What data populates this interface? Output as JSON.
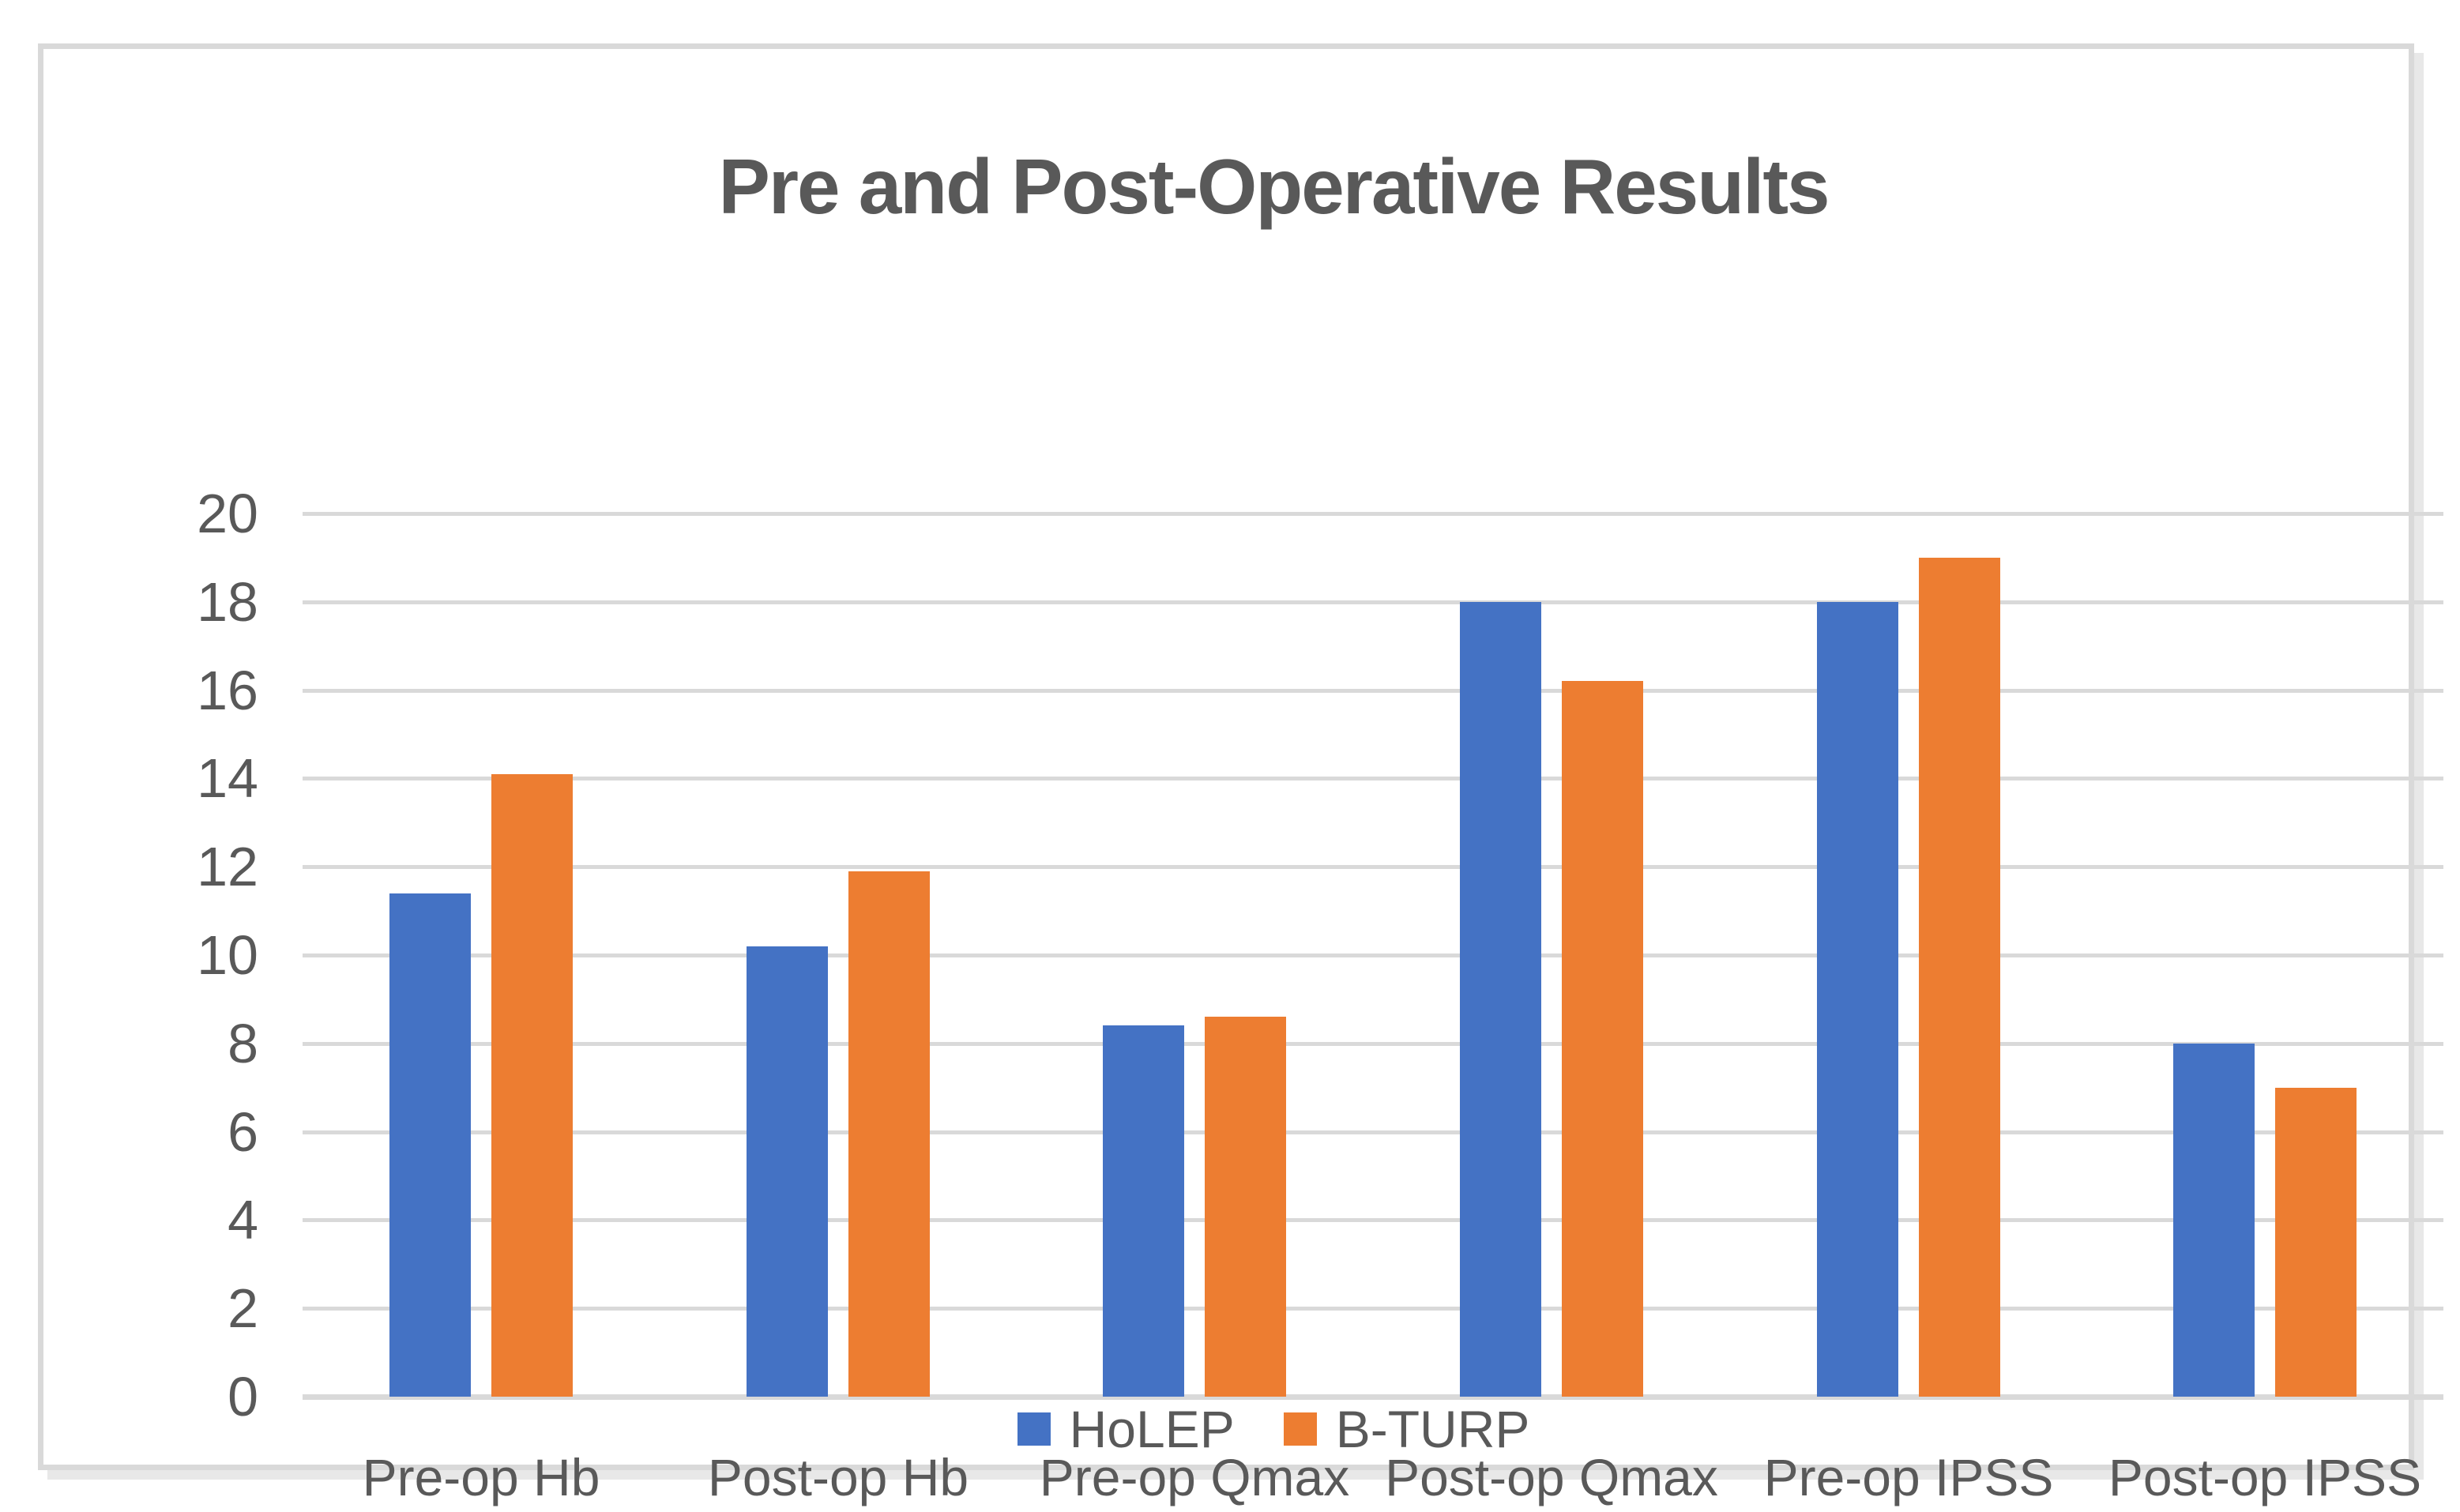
{
  "title": "Pre and Post-Operative Results",
  "legend": {
    "position": "bottom-center",
    "items": [
      {
        "label": "HoLEP",
        "swatch_color": "#4472C4"
      },
      {
        "label": "B-TURP",
        "swatch_color": "#ED7D31"
      }
    ]
  },
  "colors": {
    "series_holep": "#4472C4",
    "series_bturp": "#ED7D31",
    "text": "#595959",
    "gridline": "#D9D9D9",
    "frame_border": "#D9D9D9",
    "background": "#FFFFFF"
  },
  "chart_data": {
    "type": "bar",
    "title": "Pre and Post-Operative Results",
    "categories": [
      "Pre-op Hb",
      "Post-op Hb",
      "Pre-op Qmax",
      "Post-op Qmax",
      "Pre-op IPSS",
      "Post-op IPSS"
    ],
    "series": [
      {
        "name": "HoLEP",
        "color": "#4472C4",
        "values": [
          11.4,
          10.2,
          8.4,
          18,
          18,
          8
        ]
      },
      {
        "name": "B-TURP",
        "color": "#ED7D31",
        "values": [
          14.1,
          11.9,
          8.6,
          16.2,
          19,
          7
        ]
      }
    ],
    "xlabel": "",
    "ylabel": "",
    "ylim": [
      0,
      20
    ],
    "ytick_step": 2,
    "yticks": [
      0,
      2,
      4,
      6,
      8,
      10,
      12,
      14,
      16,
      18,
      20
    ],
    "grid": "horizontal",
    "legend_position": "bottom-center"
  }
}
